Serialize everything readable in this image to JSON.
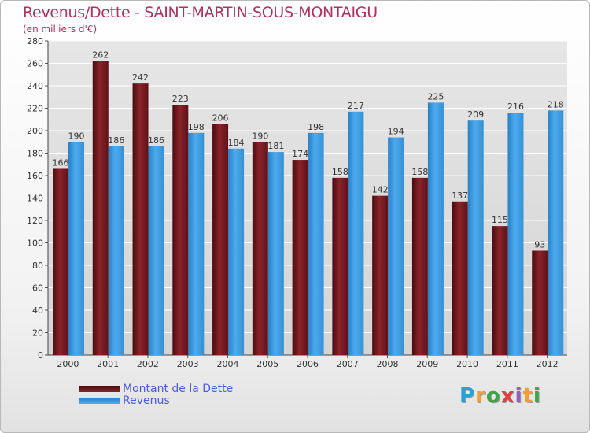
{
  "title": "Revenus/Dette - SAINT-MARTIN-SOUS-MONTAIGU",
  "subtitle": "(en milliers d'€)",
  "logo_text": "Proxiti",
  "logo_colors": [
    "#2a9fd8",
    "#f0a030",
    "#3aa845",
    "#e04040",
    "#9060c0",
    "#f0a030",
    "#3aa845"
  ],
  "chart_data": {
    "type": "bar",
    "categories": [
      "2000",
      "2001",
      "2002",
      "2003",
      "2004",
      "2005",
      "2006",
      "2007",
      "2008",
      "2009",
      "2010",
      "2011",
      "2012"
    ],
    "series": [
      {
        "name": "Montant de la Dette",
        "color": "#7a1c22",
        "values": [
          166,
          262,
          242,
          223,
          206,
          190,
          174,
          158,
          142,
          158,
          137,
          115,
          93
        ]
      },
      {
        "name": "Revenus",
        "color": "#3c9ade",
        "values": [
          190,
          186,
          186,
          198,
          184,
          181,
          198,
          217,
          194,
          225,
          209,
          216,
          218
        ]
      }
    ],
    "ylim": [
      0,
      280
    ],
    "yticks": [
      0,
      20,
      40,
      60,
      80,
      100,
      120,
      140,
      160,
      180,
      200,
      220,
      240,
      260,
      280
    ],
    "grid": true,
    "legend_position": "bottom-left"
  }
}
